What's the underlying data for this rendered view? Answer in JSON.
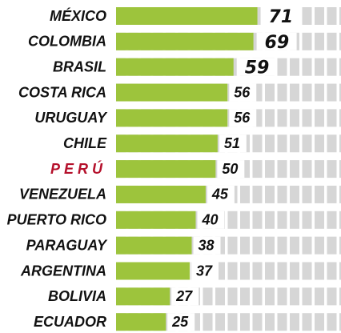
{
  "chart_data": {
    "type": "hbar",
    "categories": [
      "MÉXICO",
      "COLOMBIA",
      "BRASIL",
      "COSTA RICA",
      "URUGUAY",
      "CHILE",
      "PERÚ",
      "VENEZUELA",
      "PUERTO RICO",
      "PARAGUAY",
      "ARGENTINA",
      "BOLIVIA",
      "ECUADOR"
    ],
    "values": [
      71,
      69,
      59,
      56,
      56,
      51,
      50,
      45,
      40,
      38,
      37,
      27,
      25
    ],
    "color": "#9dc43c",
    "xlim": [
      0,
      113
    ],
    "highlight_index": 6,
    "highlight_color": "#b5112c",
    "boxed_labels": 3
  }
}
